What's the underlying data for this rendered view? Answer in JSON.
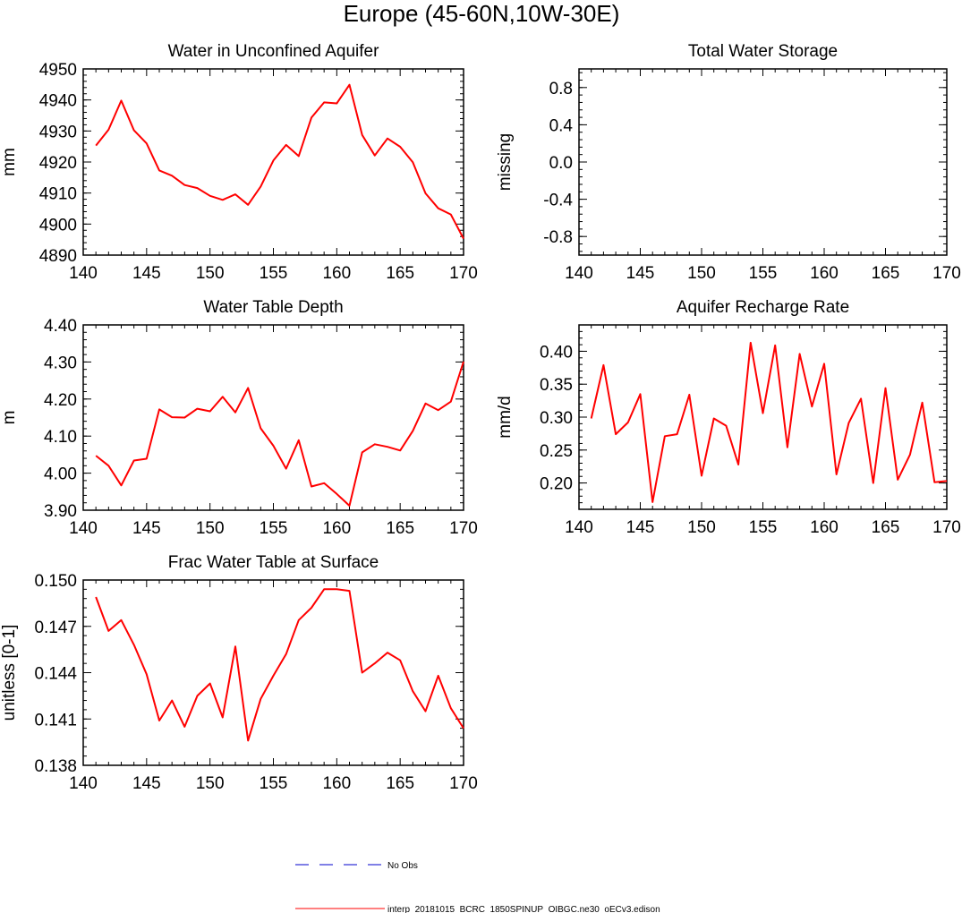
{
  "figure": {
    "title": "Europe (45-60N,10W-30E)"
  },
  "colors": {
    "model_line": "#ff0000",
    "obs_line": "#0000cc",
    "axis": "#000000"
  },
  "chart_data": [
    {
      "id": "unconfined",
      "type": "line",
      "title": "Water in Unconfined Aquifer",
      "xlabel": "",
      "ylabel": "mm",
      "xlim": [
        140,
        170
      ],
      "ylim": [
        4890,
        4950
      ],
      "xticks": [
        "140",
        "145",
        "150",
        "155",
        "160",
        "165",
        "170"
      ],
      "yticks": [
        "4950",
        "4940",
        "4930",
        "4920",
        "4910",
        "4900",
        "4890"
      ],
      "ytick_values": [
        4950,
        4940,
        4930,
        4920,
        4910,
        4900,
        4890
      ],
      "x": [
        141,
        142,
        143,
        144,
        145,
        146,
        147,
        148,
        149,
        150,
        151,
        152,
        153,
        154,
        155,
        156,
        157,
        158,
        159,
        160,
        161,
        162,
        163,
        164,
        165,
        166,
        167,
        168,
        169,
        170
      ],
      "series": [
        {
          "name": "interp_20181015_BCRC_1850SPINUP_OIBGC.ne30_oECv3.edison",
          "values": [
            4925.3,
            4930.4,
            4939.8,
            4930.2,
            4926.0,
            4917.3,
            4915.6,
            4912.6,
            4911.6,
            4909.1,
            4907.8,
            4909.6,
            4906.2,
            4912.1,
            4920.5,
            4925.5,
            4921.9,
            4934.3,
            4939.2,
            4938.9,
            4944.9,
            4928.7,
            4922.1,
            4927.6,
            4924.9,
            4919.9,
            4909.9,
            4905.1,
            4903.1,
            4895.3
          ]
        }
      ]
    },
    {
      "id": "tws",
      "type": "line",
      "title": "Total Water Storage",
      "xlabel": "",
      "ylabel": "missing",
      "xlim": [
        140,
        170
      ],
      "ylim": [
        -1,
        1
      ],
      "xticks": [
        "140",
        "145",
        "150",
        "155",
        "160",
        "165",
        "170"
      ],
      "yticks": [
        "0.8",
        "0.4",
        "0.0",
        "-0.4",
        "-0.8"
      ],
      "ytick_values": [
        0.8,
        0.4,
        0.0,
        -0.4,
        -0.8
      ],
      "x": [],
      "series": []
    },
    {
      "id": "wtd",
      "type": "line",
      "title": "Water Table Depth",
      "xlabel": "",
      "ylabel": "m",
      "xlim": [
        140,
        170
      ],
      "ylim": [
        3.9,
        4.4
      ],
      "xticks": [
        "140",
        "145",
        "150",
        "155",
        "160",
        "165",
        "170"
      ],
      "yticks": [
        "4.40",
        "4.30",
        "4.20",
        "4.10",
        "4.00",
        "3.90"
      ],
      "ytick_values": [
        4.4,
        4.3,
        4.2,
        4.1,
        4.0,
        3.9
      ],
      "x": [
        141,
        142,
        143,
        144,
        145,
        146,
        147,
        148,
        149,
        150,
        151,
        152,
        153,
        154,
        155,
        156,
        157,
        158,
        159,
        160,
        161,
        162,
        163,
        164,
        165,
        166,
        167,
        168,
        169,
        170
      ],
      "series": [
        {
          "name": "interp_20181015_BCRC_1850SPINUP_OIBGC.ne30_oECv3.edison",
          "values": [
            4.047,
            4.02,
            3.967,
            4.034,
            4.039,
            4.172,
            4.151,
            4.15,
            4.174,
            4.167,
            4.206,
            4.164,
            4.23,
            4.121,
            4.074,
            4.012,
            4.089,
            3.964,
            3.973,
            3.944,
            3.912,
            4.056,
            4.078,
            4.071,
            4.061,
            4.114,
            4.188,
            4.17,
            4.193,
            4.301
          ]
        }
      ]
    },
    {
      "id": "recharge",
      "type": "line",
      "title": "Aquifer Recharge Rate",
      "xlabel": "",
      "ylabel": "mm/d",
      "xlim": [
        140,
        170
      ],
      "ylim": [
        0.16,
        0.44
      ],
      "xticks": [
        "140",
        "145",
        "150",
        "155",
        "160",
        "165",
        "170"
      ],
      "yticks": [
        "0.40",
        "0.35",
        "0.30",
        "0.25",
        "0.20"
      ],
      "ytick_values": [
        0.4,
        0.35,
        0.3,
        0.25,
        0.2
      ],
      "x": [
        141,
        142,
        143,
        144,
        145,
        146,
        147,
        148,
        149,
        150,
        151,
        152,
        153,
        154,
        155,
        156,
        157,
        158,
        159,
        160,
        161,
        162,
        163,
        164,
        165,
        166,
        167,
        168,
        169,
        170
      ],
      "series": [
        {
          "name": "interp_20181015_BCRC_1850SPINUP_OIBGC.ne30_oECv3.edison",
          "values": [
            0.298,
            0.379,
            0.274,
            0.292,
            0.335,
            0.171,
            0.271,
            0.274,
            0.334,
            0.211,
            0.298,
            0.287,
            0.228,
            0.413,
            0.306,
            0.409,
            0.254,
            0.396,
            0.316,
            0.381,
            0.213,
            0.291,
            0.328,
            0.2,
            0.344,
            0.205,
            0.243,
            0.322,
            0.201,
            0.203
          ]
        }
      ]
    },
    {
      "id": "fwts",
      "type": "line",
      "title": "Frac Water Table at Surface",
      "xlabel": "",
      "ylabel": "unitless [0-1]",
      "xlim": [
        140,
        170
      ],
      "ylim": [
        0.138,
        0.15
      ],
      "xticks": [
        "140",
        "145",
        "150",
        "155",
        "160",
        "165",
        "170"
      ],
      "yticks": [
        "0.150",
        "0.147",
        "0.144",
        "0.141",
        "0.138"
      ],
      "ytick_values": [
        0.15,
        0.147,
        0.144,
        0.141,
        0.138
      ],
      "x": [
        141,
        142,
        143,
        144,
        145,
        146,
        147,
        148,
        149,
        150,
        151,
        152,
        153,
        154,
        155,
        156,
        157,
        158,
        159,
        160,
        161,
        162,
        163,
        164,
        165,
        166,
        167,
        168,
        169,
        170
      ],
      "series": [
        {
          "name": "interp_20181015_BCRC_1850SPINUP_OIBGC.ne30_oECv3.edison",
          "values": [
            0.1489,
            0.1467,
            0.1474,
            0.1458,
            0.1439,
            0.1409,
            0.1422,
            0.1405,
            0.1425,
            0.1433,
            0.1411,
            0.1457,
            0.1396,
            0.1423,
            0.1438,
            0.1452,
            0.1474,
            0.1482,
            0.1494,
            0.1494,
            0.1493,
            0.144,
            0.1446,
            0.1453,
            0.1448,
            0.1428,
            0.1415,
            0.1438,
            0.1417,
            0.1404
          ]
        }
      ]
    }
  ],
  "legend": {
    "entries": [
      {
        "label": "No Obs",
        "style": "dashed",
        "color": "#0000cc"
      },
      {
        "label": "interp_20181015_BCRC_1850SPINUP_OIBGC.ne30_oECv3.edison",
        "style": "solid",
        "color": "#ff0000"
      }
    ]
  }
}
